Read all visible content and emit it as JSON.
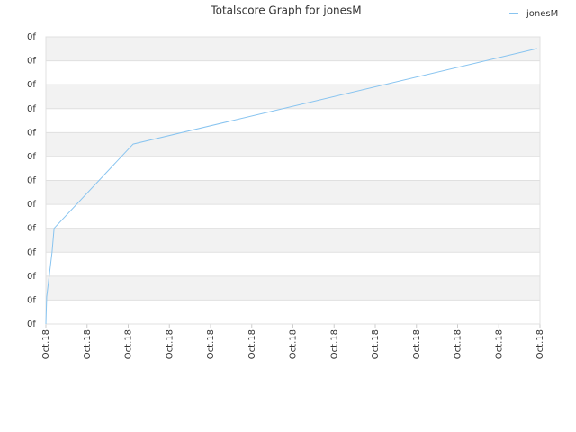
{
  "chart_data": {
    "type": "line",
    "title": "Totalscore Graph for jonesM",
    "series": [
      {
        "name": "jonesM",
        "color": "#88c4f0",
        "x": [
          0,
          0.02,
          0.15,
          0.2,
          2.12,
          11.93
        ],
        "values": [
          0,
          1.13,
          3.0,
          4.0,
          7.52,
          11.51
        ]
      }
    ],
    "xlim": [
      0,
      12
    ],
    "xticks": [
      {
        "value": 0,
        "label": "Oct.18"
      },
      {
        "value": 1,
        "label": "Oct.18"
      },
      {
        "value": 2,
        "label": "Oct.18"
      },
      {
        "value": 3,
        "label": "Oct.18"
      },
      {
        "value": 4,
        "label": "Oct.18"
      },
      {
        "value": 5,
        "label": "Oct.18"
      },
      {
        "value": 6,
        "label": "Oct.18"
      },
      {
        "value": 7,
        "label": "Oct.18"
      },
      {
        "value": 8,
        "label": "Oct.18"
      },
      {
        "value": 9,
        "label": "Oct.18"
      },
      {
        "value": 10,
        "label": "Oct.18"
      },
      {
        "value": 11,
        "label": "Oct.18"
      },
      {
        "value": 12,
        "label": "Oct.18"
      }
    ],
    "ylim": [
      0,
      12
    ],
    "yticks": [
      {
        "value": 0,
        "label": "0f"
      },
      {
        "value": 1,
        "label": "0f"
      },
      {
        "value": 2,
        "label": "0f"
      },
      {
        "value": 3,
        "label": "0f"
      },
      {
        "value": 4,
        "label": "0f"
      },
      {
        "value": 5,
        "label": "0f"
      },
      {
        "value": 6,
        "label": "0f"
      },
      {
        "value": 7,
        "label": "0f"
      },
      {
        "value": 8,
        "label": "0f"
      },
      {
        "value": 9,
        "label": "0f"
      },
      {
        "value": 10,
        "label": "0f"
      },
      {
        "value": 11,
        "label": "0f"
      },
      {
        "value": 12,
        "label": "0f"
      }
    ],
    "grid": true,
    "legend": "top-right"
  }
}
